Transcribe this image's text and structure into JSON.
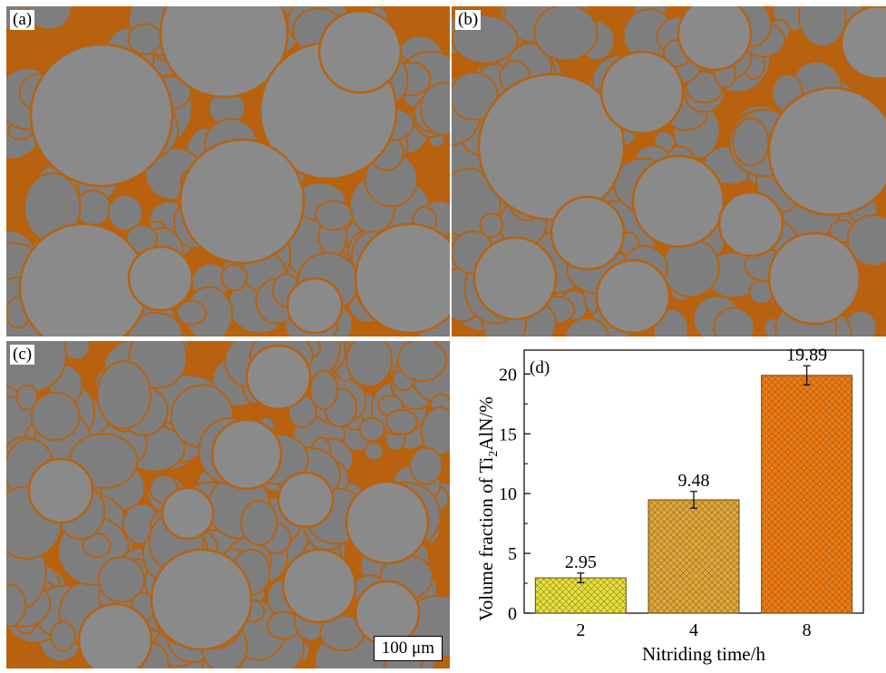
{
  "panels": {
    "a": {
      "label": "(a)"
    },
    "b": {
      "label": "(b)"
    },
    "c": {
      "label": "(c)",
      "scale_bar": "100 μm"
    }
  },
  "colors": {
    "matrix": "#7e7e7e",
    "particle": "#8a8a8a",
    "phase": "#b8620f",
    "bar_2h": "#e3e03a",
    "bar_4h": "#e0a63a",
    "bar_8h": "#f07a12"
  },
  "chart_data": {
    "type": "bar",
    "panel_label": "(d)",
    "categories": [
      "2",
      "4",
      "8"
    ],
    "values": [
      2.95,
      9.48,
      19.89
    ],
    "errors": [
      0.4,
      0.7,
      0.8
    ],
    "value_labels": [
      "2.95",
      "9.48",
      "19.89"
    ],
    "xlabel": "Nitriding time/h",
    "ylabel": "Volume fraction of Ti₂AlN/%",
    "ylim": [
      0,
      22
    ],
    "yticks": [
      0,
      5,
      10,
      15,
      20
    ],
    "grid": false,
    "bar_pattern": "crosshatch"
  }
}
